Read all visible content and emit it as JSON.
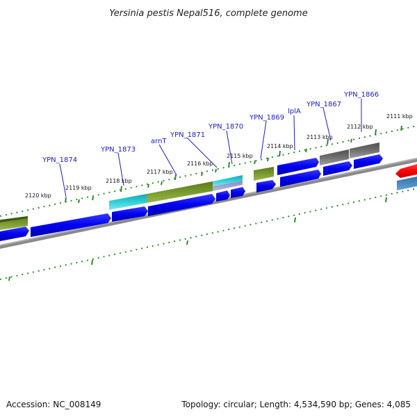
{
  "title": "Yersinia pestis Nepal516, complete genome",
  "accession": "Accession: NC_008149",
  "summary": "Topology: circular; Length: 4,534,590 bp; Genes: 4,085",
  "colors": {
    "cds": "#0000ff",
    "rRNA_like": "#6b8e23",
    "cyan": "#20c0c8",
    "gray": "#707070",
    "red": "#ff0000",
    "steel": "#4682b4",
    "backbone": "#808080",
    "tick": "#2e8b2e",
    "label": "#1a1ac8"
  },
  "kbp_labels": [
    "2120 kbp",
    "2119 kbp",
    "2118 kbp",
    "2117 kbp",
    "2116 kbp",
    "2115 kbp",
    "2114 kbp",
    "2113 kbp",
    "2112 kbp",
    "2111 kbp"
  ],
  "gene_labels": [
    "YPN_1874",
    "YPN_1873",
    "arnT",
    "YPN_1871",
    "YPN_1870",
    "YPN_1869",
    "lplA",
    "YPN_1867",
    "YPN_1866"
  ]
}
